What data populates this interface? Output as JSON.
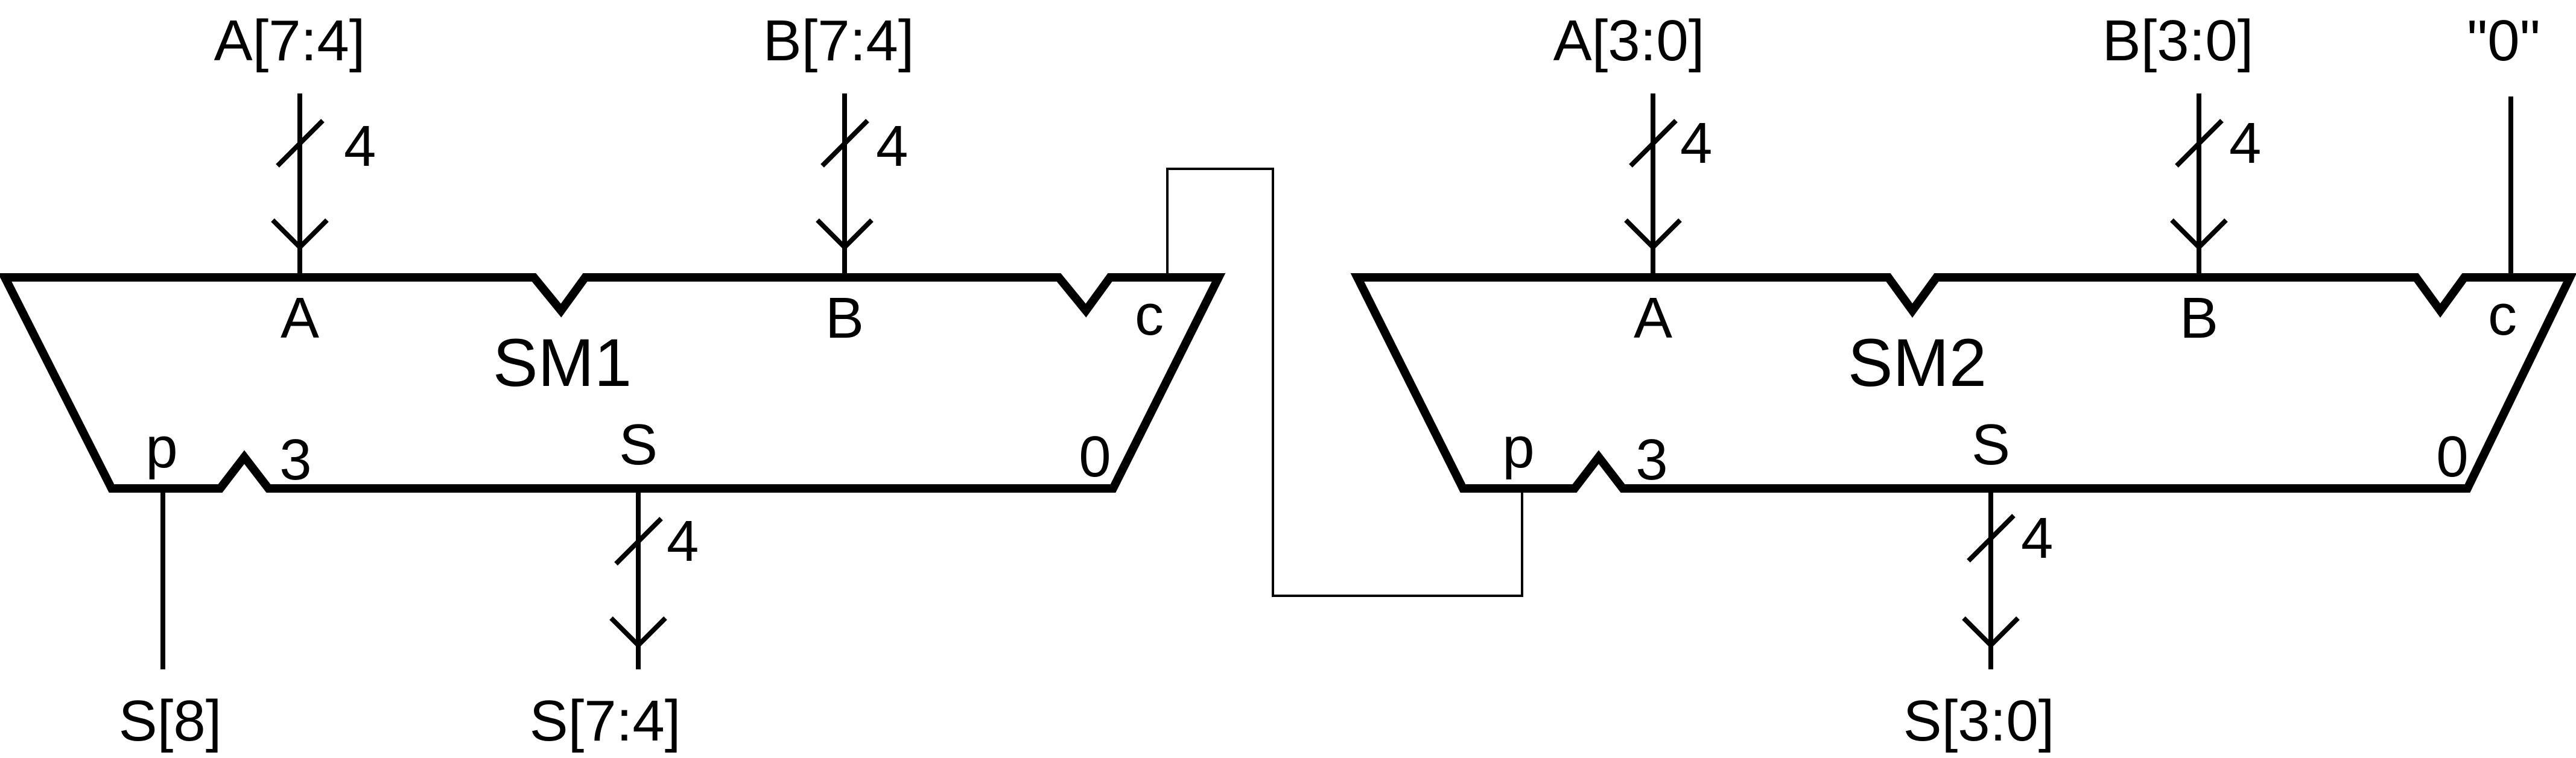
{
  "inputs": {
    "sm1_a": "A[7:4]",
    "sm1_b": "B[7:4]",
    "sm2_a": "A[3:0]",
    "sm2_b": "B[3:0]",
    "sm2_c": "\"0\""
  },
  "outputs": {
    "sm1_p": "S[8]",
    "sm1_s": "S[7:4]",
    "sm2_s": "S[3:0]"
  },
  "bus_width": "4",
  "sm1": {
    "name": "SM1",
    "port_a": "A",
    "port_b": "B",
    "port_c": "c",
    "port_p": "p",
    "port_s": "S",
    "msb": "3",
    "lsb": "0"
  },
  "sm2": {
    "name": "SM2",
    "port_a": "A",
    "port_b": "B",
    "port_c": "c",
    "port_p": "p",
    "port_s": "S",
    "msb": "3",
    "lsb": "0"
  }
}
